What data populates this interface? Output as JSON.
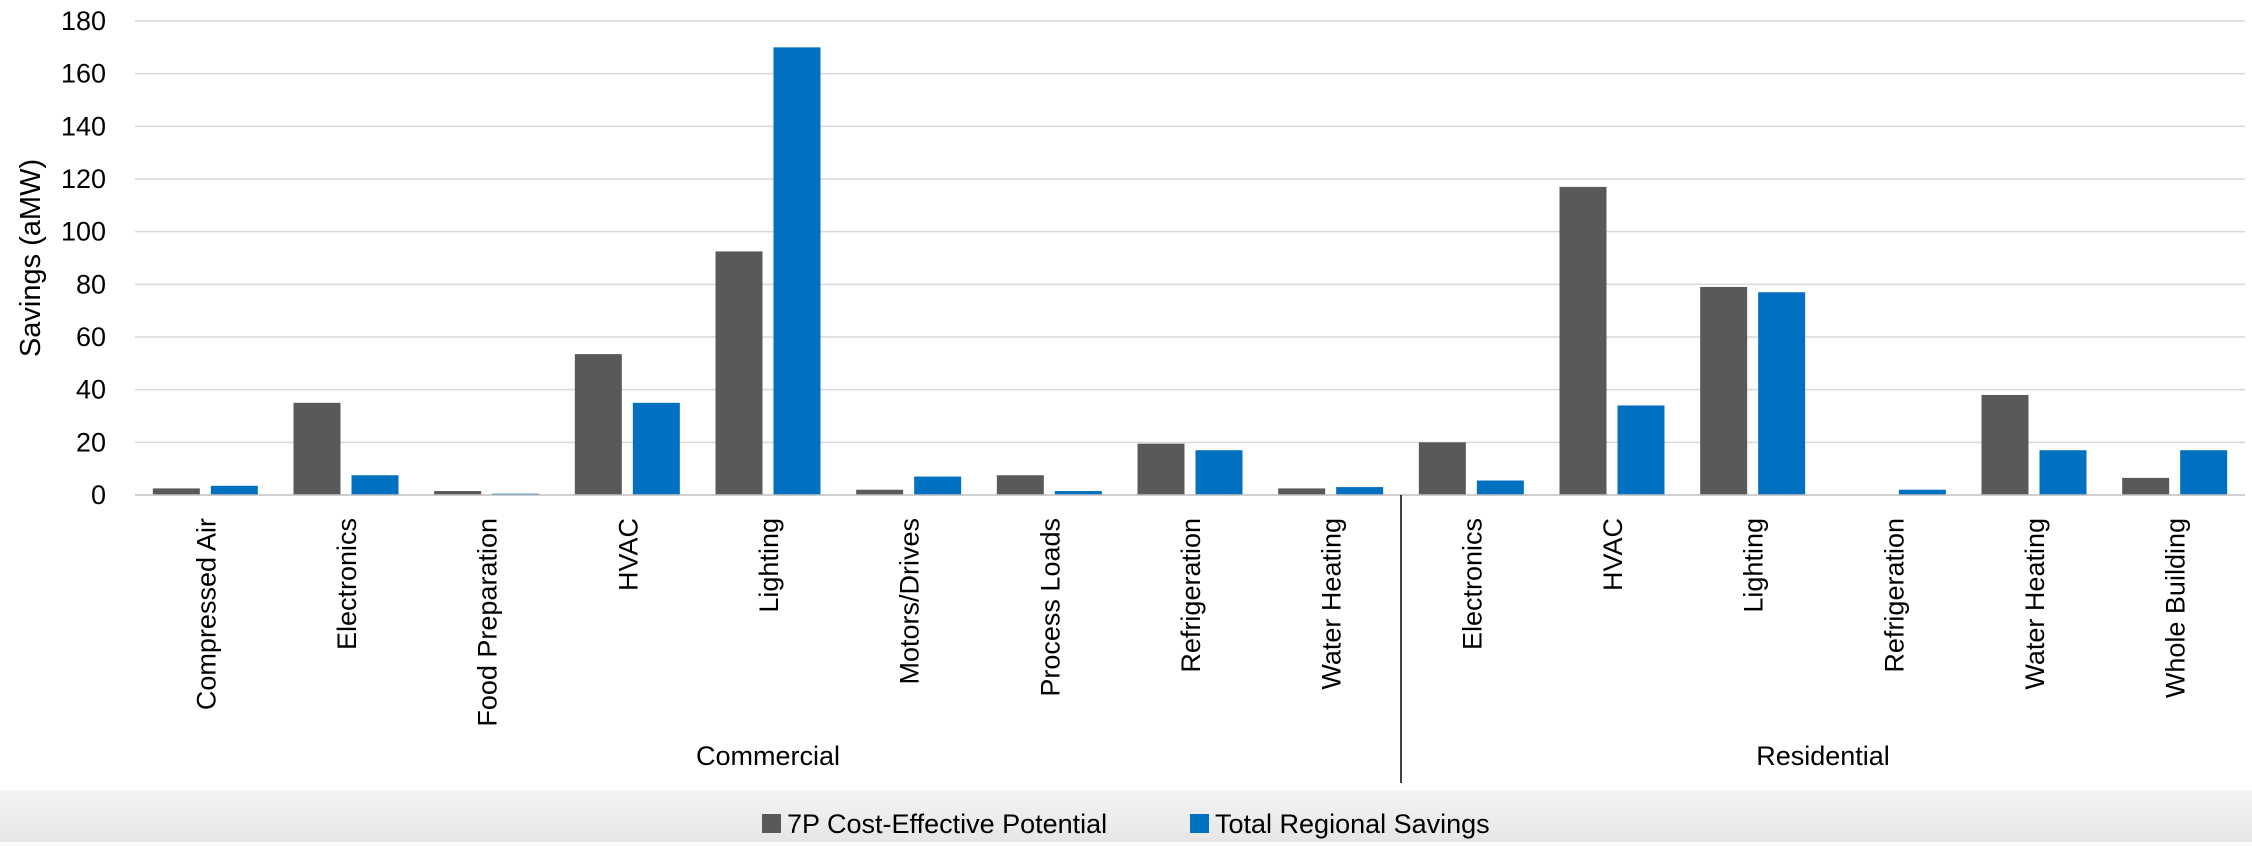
{
  "colors": {
    "series_a": "#595959",
    "series_b": "#0070c0",
    "grid": "#d9d9d9",
    "axis": "#000000"
  },
  "chart_data": {
    "type": "bar",
    "ylabel": "Savings (aMW)",
    "ylim": [
      0,
      180
    ],
    "yticks": [
      0,
      20,
      40,
      60,
      80,
      100,
      120,
      140,
      160,
      180
    ],
    "grid": true,
    "legend_position": "bottom",
    "groups": [
      {
        "name": "Commercial",
        "categories": [
          "Compressed Air",
          "Electronics",
          "Food Preparation",
          "HVAC",
          "Lighting",
          "Motors/Drives",
          "Process Loads",
          "Refrigeration",
          "Water Heating"
        ]
      },
      {
        "name": "Residential",
        "categories": [
          "Electronics",
          "HVAC",
          "Lighting",
          "Refrigeration",
          "Water Heating",
          "Whole Building"
        ]
      }
    ],
    "series": [
      {
        "name": "7P Cost-Effective Potential",
        "values": [
          2.5,
          35,
          1.5,
          53.5,
          92.5,
          2,
          7.5,
          19.5,
          2.5,
          20,
          117,
          79,
          0,
          38,
          6.5
        ]
      },
      {
        "name": "Total Regional Savings",
        "values": [
          3.5,
          7.5,
          0.5,
          35,
          170,
          7,
          1.5,
          17,
          3,
          5.5,
          34,
          77,
          2,
          17,
          17
        ]
      }
    ]
  }
}
